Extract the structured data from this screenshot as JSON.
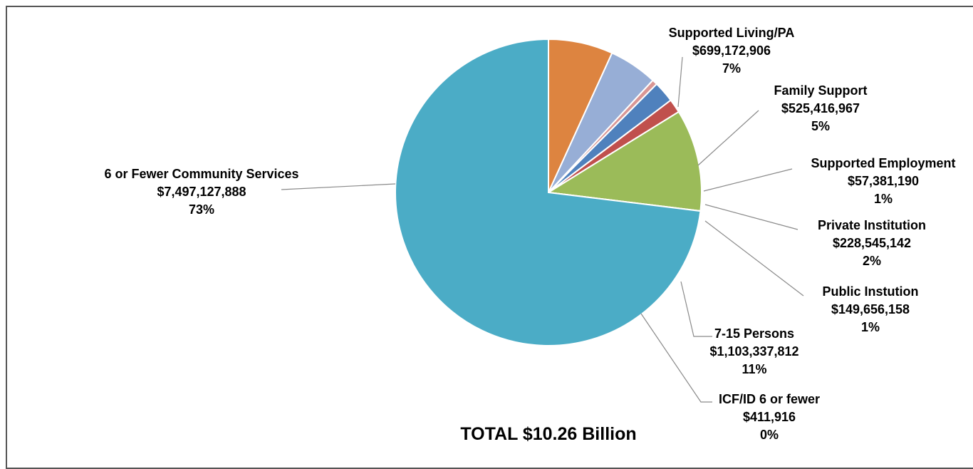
{
  "chart_data": {
    "type": "pie",
    "title": "TOTAL $10.26 Billion",
    "slices": [
      {
        "name": "Supported Living/PA",
        "amount": "$699,172,906",
        "percent": "7%",
        "value": 699172906,
        "color": "#dd8440"
      },
      {
        "name": "Family Support",
        "amount": "$525,416,967",
        "percent": "5%",
        "value": 525416967,
        "color": "#97aed6"
      },
      {
        "name": "Supported Employment",
        "amount": "$57,381,190",
        "percent": "1%",
        "value": 57381190,
        "color": "#d99694"
      },
      {
        "name": "Private Institution",
        "amount": "$228,545,142",
        "percent": "2%",
        "value": 228545142,
        "color": "#4f81bd"
      },
      {
        "name": "Public Instution",
        "amount": "$149,656,158",
        "percent": "1%",
        "value": 149656158,
        "color": "#c0504d"
      },
      {
        "name": "7-15 Persons",
        "amount": "$1,103,337,812",
        "percent": "11%",
        "value": 1103337812,
        "color": "#9bbb59"
      },
      {
        "name": "ICF/ID 6 or fewer",
        "amount": "$411,916",
        "percent": "0%",
        "value": 411916,
        "color": "#8064a2"
      },
      {
        "name": "6 or Fewer Community Services",
        "amount": "$7,497,127,888",
        "percent": "73%",
        "value": 7497127888,
        "color": "#4bacc6"
      }
    ]
  }
}
